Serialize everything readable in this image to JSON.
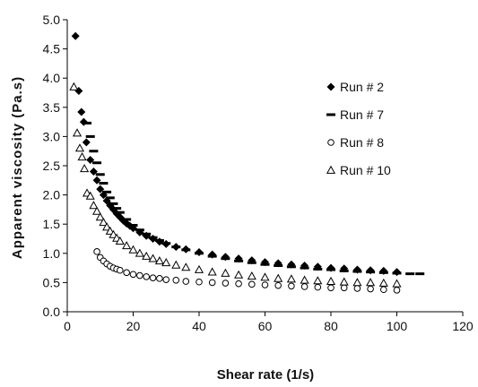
{
  "chart_data": {
    "type": "scatter",
    "title": "",
    "xlabel": "Shear rate (1/s)",
    "ylabel": "Apparent viscosity (Pa.s)",
    "xlim": [
      0,
      120
    ],
    "ylim": [
      0,
      5
    ],
    "xticks": [
      "0",
      "20",
      "40",
      "60",
      "80",
      "100",
      "120"
    ],
    "yticks": [
      "0.0",
      "0.5",
      "1.0",
      "1.5",
      "2.0",
      "2.5",
      "3.0",
      "3.5",
      "4.0",
      "4.5",
      "5.0"
    ],
    "grid": false,
    "legend_position": "right",
    "series": [
      {
        "name": "Run # 2",
        "marker": "diamond",
        "color": "#000000",
        "points": [
          [
            2.5,
            4.72
          ],
          [
            3.5,
            3.78
          ],
          [
            4.3,
            3.42
          ],
          [
            5,
            3.25
          ],
          [
            5.8,
            2.9
          ],
          [
            7,
            2.6
          ],
          [
            8,
            2.4
          ],
          [
            9,
            2.25
          ],
          [
            10,
            2.1
          ],
          [
            11,
            2.0
          ],
          [
            12,
            1.9
          ],
          [
            13,
            1.82
          ],
          [
            14,
            1.75
          ],
          [
            15,
            1.68
          ],
          [
            16,
            1.62
          ],
          [
            17,
            1.56
          ],
          [
            18,
            1.51
          ],
          [
            19,
            1.47
          ],
          [
            20,
            1.43
          ],
          [
            22,
            1.36
          ],
          [
            24,
            1.3
          ],
          [
            26,
            1.25
          ],
          [
            28,
            1.2
          ],
          [
            30,
            1.16
          ],
          [
            33,
            1.11
          ],
          [
            36,
            1.07
          ],
          [
            40,
            1.02
          ],
          [
            44,
            0.98
          ],
          [
            48,
            0.94
          ],
          [
            52,
            0.91
          ],
          [
            56,
            0.88
          ],
          [
            60,
            0.85
          ],
          [
            64,
            0.83
          ],
          [
            68,
            0.81
          ],
          [
            72,
            0.79
          ],
          [
            76,
            0.77
          ],
          [
            80,
            0.75
          ],
          [
            84,
            0.74
          ],
          [
            88,
            0.72
          ],
          [
            92,
            0.71
          ],
          [
            96,
            0.7
          ],
          [
            100,
            0.68
          ]
        ]
      },
      {
        "name": "Run # 7",
        "marker": "dash",
        "color": "#000000",
        "points": [
          [
            6,
            3.23
          ],
          [
            7,
            3.0
          ],
          [
            8,
            2.75
          ],
          [
            9,
            2.55
          ],
          [
            10,
            2.35
          ],
          [
            11,
            2.2
          ],
          [
            12,
            2.05
          ],
          [
            13,
            1.95
          ],
          [
            14,
            1.85
          ],
          [
            15,
            1.77
          ],
          [
            16,
            1.7
          ],
          [
            18,
            1.58
          ],
          [
            20,
            1.48
          ],
          [
            22,
            1.4
          ],
          [
            24,
            1.33
          ],
          [
            26,
            1.27
          ],
          [
            28,
            1.22
          ],
          [
            30,
            1.17
          ],
          [
            33,
            1.11
          ],
          [
            36,
            1.06
          ],
          [
            40,
            1.0
          ],
          [
            44,
            0.95
          ],
          [
            48,
            0.91
          ],
          [
            52,
            0.87
          ],
          [
            56,
            0.84
          ],
          [
            60,
            0.81
          ],
          [
            64,
            0.79
          ],
          [
            68,
            0.77
          ],
          [
            72,
            0.75
          ],
          [
            76,
            0.73
          ],
          [
            80,
            0.72
          ],
          [
            84,
            0.7
          ],
          [
            88,
            0.69
          ],
          [
            92,
            0.68
          ],
          [
            96,
            0.67
          ],
          [
            100,
            0.66
          ],
          [
            104,
            0.65
          ],
          [
            107,
            0.65
          ]
        ]
      },
      {
        "name": "Run #  8",
        "marker": "circle",
        "color": "#000000",
        "points": [
          [
            9,
            1.03
          ],
          [
            10,
            0.93
          ],
          [
            11,
            0.87
          ],
          [
            12,
            0.82
          ],
          [
            13,
            0.78
          ],
          [
            14,
            0.75
          ],
          [
            15,
            0.73
          ],
          [
            16,
            0.71
          ],
          [
            18,
            0.67
          ],
          [
            20,
            0.64
          ],
          [
            22,
            0.62
          ],
          [
            24,
            0.6
          ],
          [
            26,
            0.58
          ],
          [
            28,
            0.57
          ],
          [
            30,
            0.55
          ],
          [
            33,
            0.54
          ],
          [
            36,
            0.52
          ],
          [
            40,
            0.51
          ],
          [
            44,
            0.5
          ],
          [
            48,
            0.49
          ],
          [
            52,
            0.48
          ],
          [
            56,
            0.47
          ],
          [
            60,
            0.46
          ],
          [
            64,
            0.45
          ],
          [
            68,
            0.44
          ],
          [
            72,
            0.43
          ],
          [
            76,
            0.42
          ],
          [
            80,
            0.41
          ],
          [
            84,
            0.41
          ],
          [
            88,
            0.4
          ],
          [
            92,
            0.39
          ],
          [
            96,
            0.38
          ],
          [
            100,
            0.37
          ]
        ]
      },
      {
        "name": "Run # 10",
        "marker": "triangle",
        "color": "#000000",
        "points": [
          [
            2,
            3.85
          ],
          [
            3,
            3.06
          ],
          [
            3.8,
            2.8
          ],
          [
            4.5,
            2.65
          ],
          [
            5.2,
            2.45
          ],
          [
            6,
            2.03
          ],
          [
            7,
            1.98
          ],
          [
            8,
            1.82
          ],
          [
            9,
            1.72
          ],
          [
            10,
            1.62
          ],
          [
            11,
            1.53
          ],
          [
            12,
            1.45
          ],
          [
            13,
            1.38
          ],
          [
            14,
            1.32
          ],
          [
            15,
            1.26
          ],
          [
            16,
            1.21
          ],
          [
            18,
            1.13
          ],
          [
            20,
            1.06
          ],
          [
            22,
            1.0
          ],
          [
            24,
            0.95
          ],
          [
            26,
            0.91
          ],
          [
            28,
            0.87
          ],
          [
            30,
            0.84
          ],
          [
            33,
            0.8
          ],
          [
            36,
            0.76
          ],
          [
            40,
            0.72
          ],
          [
            44,
            0.68
          ],
          [
            48,
            0.66
          ],
          [
            52,
            0.63
          ],
          [
            56,
            0.61
          ],
          [
            60,
            0.59
          ],
          [
            64,
            0.57
          ],
          [
            68,
            0.56
          ],
          [
            72,
            0.54
          ],
          [
            76,
            0.53
          ],
          [
            80,
            0.52
          ],
          [
            84,
            0.51
          ],
          [
            88,
            0.5
          ],
          [
            92,
            0.5
          ],
          [
            96,
            0.49
          ],
          [
            100,
            0.48
          ]
        ]
      }
    ]
  }
}
